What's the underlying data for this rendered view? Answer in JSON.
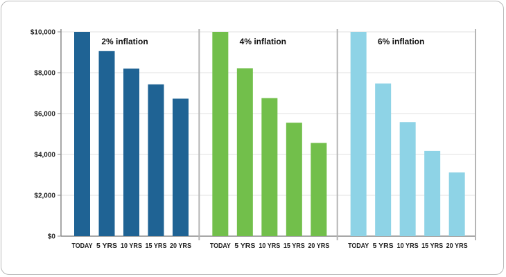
{
  "chart_data": {
    "type": "bar",
    "ylim": [
      0,
      10000
    ],
    "y_ticks": [
      0,
      2000,
      4000,
      6000,
      8000,
      10000
    ],
    "y_tick_labels": [
      "$0",
      "$2,000",
      "$4,000",
      "$6,000",
      "$8,000",
      "$10,000"
    ],
    "categories": [
      "TODAY",
      "5 YRS",
      "10 YRS",
      "15 YRS",
      "20 YRS"
    ],
    "grid": true,
    "panels": [
      {
        "title": "2% inflation",
        "color": "#1f6394",
        "values": [
          10000,
          9057,
          8203,
          7430,
          6730
        ]
      },
      {
        "title": "4% inflation",
        "color": "#72bf4b",
        "values": [
          10000,
          8219,
          6756,
          5553,
          4564
        ]
      },
      {
        "title": "6% inflation",
        "color": "#8ed3e6",
        "values": [
          10000,
          7473,
          5584,
          4173,
          3118
        ]
      }
    ]
  }
}
